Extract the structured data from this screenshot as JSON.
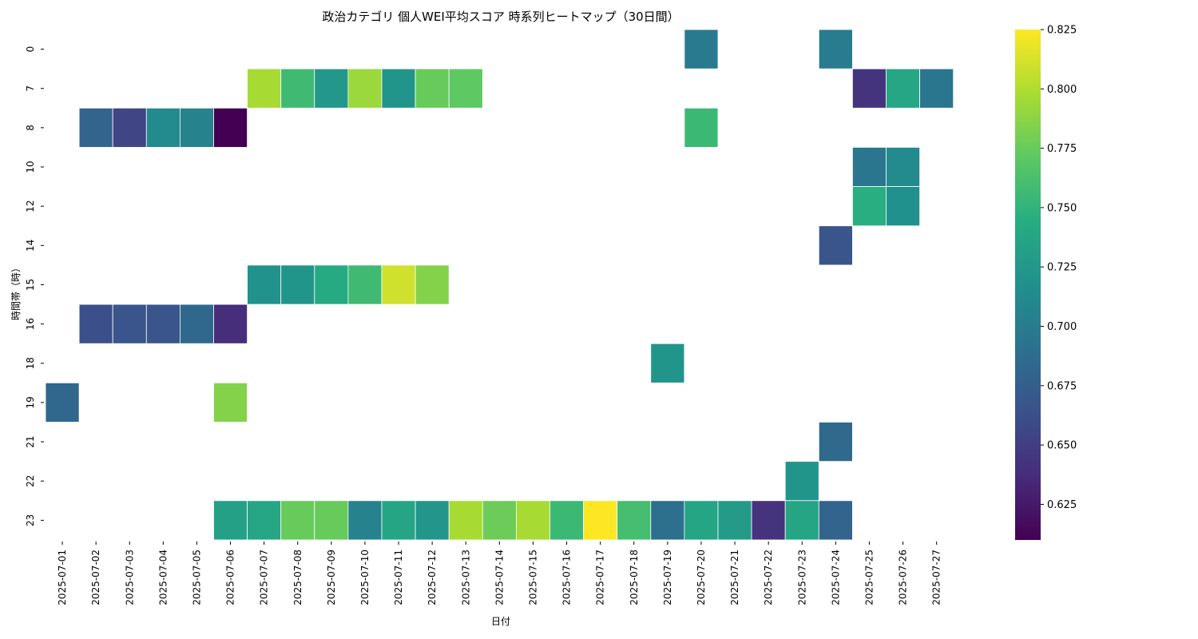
{
  "chart_data": {
    "type": "heatmap",
    "title": "政治カテゴリ 個人WEI平均スコア 時系列ヒートマップ（30日間）",
    "xlabel": "日付",
    "ylabel": "時間帯（時）",
    "x_categories": [
      "2025-07-01",
      "2025-07-02",
      "2025-07-03",
      "2025-07-04",
      "2025-07-05",
      "2025-07-06",
      "2025-07-07",
      "2025-07-08",
      "2025-07-09",
      "2025-07-10",
      "2025-07-11",
      "2025-07-12",
      "2025-07-13",
      "2025-07-14",
      "2025-07-15",
      "2025-07-16",
      "2025-07-17",
      "2025-07-18",
      "2025-07-19",
      "2025-07-20",
      "2025-07-21",
      "2025-07-22",
      "2025-07-23",
      "2025-07-24",
      "2025-07-25",
      "2025-07-26",
      "2025-07-27"
    ],
    "y_categories": [
      "0",
      "7",
      "8",
      "10",
      "12",
      "14",
      "15",
      "16",
      "18",
      "19",
      "21",
      "22",
      "23"
    ],
    "values": [
      [
        null,
        null,
        null,
        null,
        null,
        null,
        null,
        null,
        null,
        null,
        null,
        null,
        null,
        null,
        null,
        null,
        null,
        null,
        null,
        0.698,
        null,
        null,
        null,
        0.7,
        null,
        null,
        null
      ],
      [
        null,
        null,
        null,
        null,
        null,
        null,
        0.797,
        0.757,
        0.725,
        0.793,
        0.722,
        0.775,
        0.772,
        null,
        null,
        null,
        null,
        null,
        null,
        null,
        null,
        null,
        null,
        null,
        0.643,
        0.738,
        0.695
      ],
      [
        null,
        0.68,
        0.655,
        0.712,
        0.705,
        0.61,
        null,
        null,
        null,
        null,
        null,
        null,
        null,
        null,
        null,
        null,
        null,
        null,
        null,
        0.755,
        null,
        null,
        null,
        null,
        null,
        null,
        null
      ],
      [
        null,
        null,
        null,
        null,
        null,
        null,
        null,
        null,
        null,
        null,
        null,
        null,
        null,
        null,
        null,
        null,
        null,
        null,
        null,
        null,
        null,
        null,
        null,
        null,
        0.695,
        0.712,
        null
      ],
      [
        null,
        null,
        null,
        null,
        null,
        null,
        null,
        null,
        null,
        null,
        null,
        null,
        null,
        null,
        null,
        null,
        null,
        null,
        null,
        null,
        null,
        null,
        null,
        null,
        0.745,
        0.718,
        null
      ],
      [
        null,
        null,
        null,
        null,
        null,
        null,
        null,
        null,
        null,
        null,
        null,
        null,
        null,
        null,
        null,
        null,
        null,
        null,
        null,
        null,
        null,
        null,
        null,
        0.667,
        null,
        null,
        null
      ],
      [
        null,
        null,
        null,
        null,
        null,
        null,
        0.72,
        0.722,
        0.742,
        0.757,
        0.81,
        0.785,
        null,
        null,
        null,
        null,
        null,
        null,
        null,
        null,
        null,
        null,
        null,
        null,
        null,
        null,
        null
      ],
      [
        null,
        0.663,
        0.667,
        0.667,
        0.683,
        0.638,
        null,
        null,
        null,
        null,
        null,
        null,
        null,
        null,
        null,
        null,
        null,
        null,
        null,
        null,
        null,
        null,
        null,
        null,
        null,
        null,
        null
      ],
      [
        null,
        null,
        null,
        null,
        null,
        null,
        null,
        null,
        null,
        null,
        null,
        null,
        null,
        null,
        null,
        null,
        null,
        null,
        0.722,
        null,
        null,
        null,
        null,
        null,
        null,
        null,
        null
      ],
      [
        0.683,
        null,
        null,
        null,
        null,
        0.785,
        null,
        null,
        null,
        null,
        null,
        null,
        null,
        null,
        null,
        null,
        null,
        null,
        null,
        null,
        null,
        null,
        null,
        null,
        null,
        null,
        null
      ],
      [
        null,
        null,
        null,
        null,
        null,
        null,
        null,
        null,
        null,
        null,
        null,
        null,
        null,
        null,
        null,
        null,
        null,
        null,
        null,
        null,
        null,
        null,
        null,
        0.685,
        null,
        null,
        null
      ],
      [
        null,
        null,
        null,
        null,
        null,
        null,
        null,
        null,
        null,
        null,
        null,
        null,
        null,
        null,
        null,
        null,
        null,
        null,
        null,
        null,
        null,
        null,
        0.722,
        null,
        null,
        null,
        null
      ],
      [
        null,
        null,
        null,
        null,
        null,
        0.732,
        0.738,
        0.775,
        0.775,
        0.705,
        0.737,
        0.723,
        0.797,
        0.777,
        0.797,
        0.755,
        0.825,
        0.76,
        0.69,
        0.737,
        0.728,
        0.642,
        0.737,
        0.68,
        null,
        null,
        null
      ]
    ],
    "colorbar": {
      "colormap": "viridis",
      "min": 0.61,
      "max": 0.825,
      "ticks": [
        "0.625",
        "0.650",
        "0.675",
        "0.700",
        "0.725",
        "0.750",
        "0.775",
        "0.800",
        "0.825"
      ]
    },
    "grid": false
  }
}
